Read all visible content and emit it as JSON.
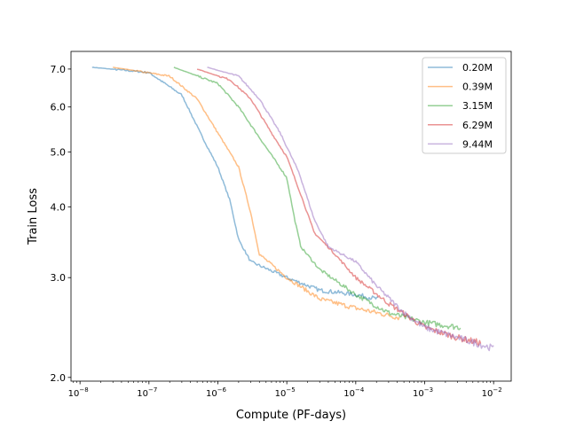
{
  "chart_data": {
    "type": "line",
    "title": "",
    "xlabel": "Compute (PF-days)",
    "ylabel": "Train Loss",
    "xscale": "log",
    "yscale": "log",
    "xlim": [
      7.4e-09,
      0.018
    ],
    "ylim": [
      1.97,
      7.52
    ],
    "x_ticks": [
      {
        "value": 1e-08,
        "base": "10",
        "exp": "−8"
      },
      {
        "value": 1e-07,
        "base": "10",
        "exp": "−7"
      },
      {
        "value": 1e-06,
        "base": "10",
        "exp": "−6"
      },
      {
        "value": 1e-05,
        "base": "10",
        "exp": "−5"
      },
      {
        "value": 0.0001,
        "base": "10",
        "exp": "−4"
      },
      {
        "value": 0.001,
        "base": "10",
        "exp": "−3"
      },
      {
        "value": 0.01,
        "base": "10",
        "exp": "−2"
      }
    ],
    "y_ticks": [
      {
        "value": 2.0,
        "label": "2.0"
      },
      {
        "value": 3.0,
        "label": "3.0"
      },
      {
        "value": 4.0,
        "label": "4.0"
      },
      {
        "value": 5.0,
        "label": "5.0"
      },
      {
        "value": 6.0,
        "label": "6.0"
      },
      {
        "value": 7.0,
        "label": "7.0"
      }
    ],
    "legend_position": "top-right",
    "grid": false,
    "series": [
      {
        "name": "0.20M",
        "color": "#1f77b4",
        "x": [
          1.5e-08,
          1e-07,
          3e-07,
          6e-07,
          1e-06,
          1.5e-06,
          2e-06,
          3e-06,
          1e-05,
          3e-05,
          0.0001,
          0.00021
        ],
        "y": [
          7.05,
          6.9,
          6.3,
          5.3,
          4.7,
          4.1,
          3.5,
          3.2,
          3.0,
          2.85,
          2.8,
          2.75
        ]
      },
      {
        "name": "0.39M",
        "color": "#ff7f0e",
        "x": [
          3e-08,
          2e-07,
          5e-07,
          1e-06,
          2e-06,
          3e-06,
          4e-06,
          1e-05,
          3e-05,
          0.0001,
          0.00043
        ],
        "y": [
          7.05,
          6.8,
          6.2,
          5.4,
          4.7,
          3.9,
          3.3,
          3.0,
          2.75,
          2.65,
          2.55
        ]
      },
      {
        "name": "3.15M",
        "color": "#2ca02c",
        "x": [
          2.3e-07,
          1e-06,
          2e-06,
          4e-06,
          7e-06,
          1e-05,
          1.3e-05,
          1.6e-05,
          3e-05,
          0.0001,
          0.0003,
          0.001,
          0.0033
        ],
        "y": [
          7.05,
          6.6,
          6.0,
          5.3,
          4.8,
          4.5,
          3.8,
          3.4,
          3.1,
          2.8,
          2.6,
          2.5,
          2.45
        ]
      },
      {
        "name": "6.29M",
        "color": "#d62728",
        "x": [
          5e-07,
          1.5e-06,
          3e-06,
          6e-06,
          1e-05,
          1.6e-05,
          2.5e-05,
          5e-05,
          0.0001,
          0.0003,
          0.001,
          0.003,
          0.0065
        ],
        "y": [
          7.0,
          6.7,
          6.2,
          5.4,
          4.9,
          4.2,
          3.6,
          3.3,
          3.0,
          2.7,
          2.45,
          2.35,
          2.3
        ]
      },
      {
        "name": "9.44M",
        "color": "#9467bd",
        "x": [
          7e-07,
          2e-06,
          4e-06,
          8e-06,
          1.5e-05,
          2.5e-05,
          4e-05,
          0.0001,
          0.0002,
          0.0005,
          0.001,
          0.003,
          0.01
        ],
        "y": [
          7.05,
          6.8,
          6.2,
          5.4,
          4.6,
          3.8,
          3.4,
          3.2,
          2.9,
          2.6,
          2.45,
          2.35,
          2.25
        ]
      }
    ]
  }
}
